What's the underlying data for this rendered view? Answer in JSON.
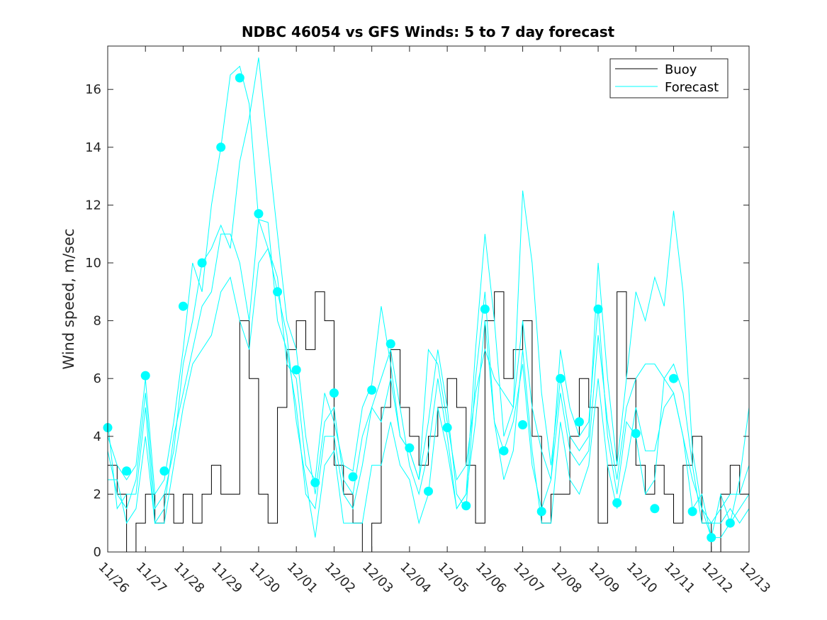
{
  "chart_data": {
    "type": "line",
    "title": "NDBC 46054 vs GFS Winds: 5 to 7 day forecast",
    "xlabel": "",
    "ylabel": "Wind speed, m/sec",
    "x_tick_labels": [
      "11/26",
      "11/27",
      "11/28",
      "11/29",
      "11/30",
      "12/01",
      "12/02",
      "12/03",
      "12/04",
      "12/05",
      "12/06",
      "12/07",
      "12/08",
      "12/09",
      "12/10",
      "12/11",
      "12/12",
      "12/13"
    ],
    "x_range_days": [
      0,
      17
    ],
    "y_ticks": [
      0,
      2,
      4,
      6,
      8,
      10,
      12,
      14,
      16
    ],
    "ylim": [
      0,
      17.5
    ],
    "legend": {
      "location": "top-right",
      "entries": [
        "Buoy",
        "Forecast"
      ]
    },
    "colors": {
      "buoy": "#000000",
      "forecast": "#00ffff",
      "axes": "#262626"
    },
    "series": [
      {
        "name": "Buoy",
        "x": [
          0.0,
          0.25,
          0.5,
          0.75,
          1.0,
          1.25,
          1.5,
          1.75,
          2.0,
          2.25,
          2.5,
          2.75,
          3.0,
          3.25,
          3.5,
          3.75,
          4.0,
          4.25,
          4.5,
          4.75,
          5.0,
          5.25,
          5.5,
          5.75,
          6.0,
          6.25,
          6.5,
          6.75,
          7.0,
          7.25,
          7.5,
          7.75,
          8.0,
          8.25,
          8.5,
          8.75,
          9.0,
          9.25,
          9.5,
          9.75,
          10.0,
          10.25,
          10.5,
          10.75,
          11.0,
          11.25,
          11.5,
          11.75,
          12.0,
          12.25,
          12.5,
          12.75,
          13.0,
          13.25,
          13.5,
          13.75,
          14.0,
          14.25,
          14.5,
          14.75,
          15.0,
          15.25,
          15.5,
          15.75,
          16.0,
          16.25,
          16.5,
          16.75,
          17.0
        ],
        "values": [
          3,
          2,
          0,
          1,
          2,
          1,
          2,
          1,
          2,
          1,
          2,
          3,
          2,
          2,
          8,
          6,
          2,
          1,
          5,
          7,
          8,
          7,
          9,
          8,
          3,
          2,
          1,
          0,
          1,
          5,
          7,
          5,
          4,
          3,
          4,
          5,
          6,
          5,
          3,
          1,
          8,
          9,
          6,
          7,
          8,
          4,
          1,
          2,
          2,
          4,
          6,
          5,
          1,
          3,
          9,
          6,
          3,
          2,
          3,
          2,
          1,
          3,
          4,
          1,
          0,
          2,
          3,
          2,
          3
        ]
      },
      {
        "name": "Forecast",
        "markers": [
          {
            "x": 0.0,
            "y": 4.3
          },
          {
            "x": 0.5,
            "y": 2.8
          },
          {
            "x": 1.0,
            "y": 6.1
          },
          {
            "x": 1.5,
            "y": 2.8
          },
          {
            "x": 2.0,
            "y": 8.5
          },
          {
            "x": 2.5,
            "y": 10.0
          },
          {
            "x": 3.0,
            "y": 14.0
          },
          {
            "x": 3.5,
            "y": 16.4
          },
          {
            "x": 4.0,
            "y": 11.7
          },
          {
            "x": 4.5,
            "y": 9.0
          },
          {
            "x": 5.0,
            "y": 6.3
          },
          {
            "x": 5.5,
            "y": 2.4
          },
          {
            "x": 6.0,
            "y": 5.5
          },
          {
            "x": 6.5,
            "y": 2.6
          },
          {
            "x": 7.0,
            "y": 5.6
          },
          {
            "x": 7.5,
            "y": 7.2
          },
          {
            "x": 8.0,
            "y": 3.6
          },
          {
            "x": 8.5,
            "y": 2.1
          },
          {
            "x": 9.0,
            "y": 4.3
          },
          {
            "x": 9.5,
            "y": 1.6
          },
          {
            "x": 10.0,
            "y": 8.4
          },
          {
            "x": 10.5,
            "y": 3.5
          },
          {
            "x": 11.0,
            "y": 4.4
          },
          {
            "x": 11.5,
            "y": 1.4
          },
          {
            "x": 12.0,
            "y": 6.0
          },
          {
            "x": 12.5,
            "y": 4.5
          },
          {
            "x": 13.0,
            "y": 8.4
          },
          {
            "x": 13.5,
            "y": 1.7
          },
          {
            "x": 14.0,
            "y": 4.1
          },
          {
            "x": 14.5,
            "y": 1.5
          },
          {
            "x": 15.0,
            "y": 6.0
          },
          {
            "x": 15.5,
            "y": 1.4
          },
          {
            "x": 16.0,
            "y": 0.5
          },
          {
            "x": 16.5,
            "y": 1.0
          }
        ],
        "runs": [
          {
            "x": [
              0.0,
              0.25,
              0.5,
              0.75,
              1.0,
              1.25,
              1.5,
              1.75,
              2.0,
              2.25,
              2.5,
              2.75,
              3.0,
              3.25,
              3.5,
              3.75,
              4.0,
              4.25,
              4.5,
              4.75,
              5.0,
              5.25,
              5.5,
              5.75,
              6.0,
              6.25,
              6.5,
              6.75,
              7.0,
              7.25,
              7.5,
              7.75,
              8.0,
              8.25,
              8.5,
              8.75,
              9.0,
              9.25,
              9.5,
              9.75,
              10.0,
              10.25,
              10.5,
              10.75,
              11.0,
              11.25,
              11.5,
              11.75,
              12.0,
              12.25,
              12.5,
              12.75,
              13.0,
              13.25,
              13.5,
              13.75,
              14.0,
              14.25,
              14.5,
              14.75,
              15.0,
              15.25,
              15.5,
              15.75,
              16.0,
              16.25,
              16.5,
              16.75,
              17.0
            ],
            "values": [
              4.0,
              3.0,
              2.5,
              3.0,
              6.0,
              2.0,
              2.5,
              4.5,
              7.0,
              10.0,
              9.0,
              12.0,
              14.0,
              16.5,
              16.8,
              15.5,
              11.5,
              10.5,
              9.5,
              6.5,
              6.0,
              3.0,
              2.5,
              5.5,
              4.5,
              3.0,
              2.8,
              5.0,
              5.8,
              8.5,
              6.5,
              4.0,
              3.5,
              2.5,
              4.5,
              7.0,
              5.0,
              2.0,
              1.5,
              6.0,
              9.0,
              4.5,
              3.5,
              4.5,
              6.5,
              3.0,
              1.5,
              2.5,
              7.0,
              5.0,
              4.0,
              4.5,
              8.5,
              4.0,
              2.0,
              4.5,
              4.0,
              2.0,
              2.5,
              6.0,
              5.5,
              4.0,
              1.5,
              2.0,
              0.5,
              2.0,
              1.0,
              2.5,
              5.0
            ]
          },
          {
            "x": [
              0.0,
              0.25,
              0.5,
              0.75,
              1.0,
              1.25,
              1.5,
              1.75,
              2.0,
              2.25,
              2.5,
              2.75,
              3.0,
              3.25,
              3.5,
              3.75,
              4.0,
              4.25,
              4.5,
              4.75,
              5.0,
              5.25,
              5.5,
              5.75,
              6.0,
              6.25,
              6.5,
              6.75,
              7.0,
              7.25,
              7.5,
              7.75,
              8.0,
              8.25,
              8.5,
              8.75,
              9.0,
              9.25,
              9.5,
              9.75,
              10.0,
              10.25,
              10.5,
              10.75,
              11.0,
              11.25,
              11.5,
              11.75,
              12.0,
              12.25,
              12.5,
              12.75,
              13.0,
              13.25,
              13.5,
              13.75,
              14.0,
              14.25,
              14.5,
              14.75,
              15.0,
              15.25,
              15.5,
              15.75,
              16.0,
              16.25,
              16.5,
              16.75,
              17.0
            ],
            "values": [
              3.5,
              2.0,
              1.5,
              2.5,
              5.5,
              1.5,
              2.0,
              3.5,
              6.5,
              8.0,
              10.0,
              10.5,
              11.3,
              10.5,
              13.5,
              15.0,
              17.1,
              14.0,
              11.0,
              8.0,
              7.0,
              4.0,
              2.0,
              4.5,
              5.0,
              2.5,
              2.0,
              4.0,
              5.0,
              6.0,
              7.0,
              5.0,
              3.0,
              2.0,
              3.5,
              6.0,
              4.0,
              1.5,
              2.0,
              7.0,
              11.0,
              8.0,
              4.0,
              5.0,
              12.5,
              10.0,
              5.5,
              3.0,
              6.0,
              4.0,
              3.5,
              4.0,
              10.0,
              6.0,
              3.0,
              6.0,
              9.0,
              8.0,
              9.5,
              8.5,
              11.8,
              9.0,
              3.5,
              1.5,
              1.0,
              1.5,
              2.0,
              2.0,
              3.0
            ]
          },
          {
            "x": [
              0.0,
              0.25,
              0.5,
              0.75,
              1.0,
              1.25,
              1.5,
              1.75,
              2.0,
              2.25,
              2.5,
              2.75,
              3.0,
              3.25,
              3.5,
              3.75,
              4.0,
              4.25,
              4.5,
              4.75,
              5.0,
              5.25,
              5.5,
              5.75,
              6.0,
              6.25,
              6.5,
              6.75,
              7.0,
              7.25,
              7.5,
              7.75,
              8.0,
              8.25,
              8.5,
              8.75,
              9.0,
              9.25,
              9.5,
              9.75,
              10.0,
              10.25,
              10.5,
              10.75,
              11.0,
              11.25,
              11.5,
              11.75,
              12.0,
              12.25,
              12.5,
              12.75,
              13.0,
              13.25,
              13.5,
              13.75,
              14.0,
              14.25,
              14.5,
              14.75,
              15.0,
              15.25,
              15.5,
              15.75,
              16.0,
              16.25,
              16.5,
              16.75,
              17.0
            ],
            "values": [
              4.5,
              1.5,
              2.0,
              2.0,
              5.0,
              1.0,
              1.5,
              4.0,
              5.5,
              7.0,
              8.5,
              9.0,
              11.0,
              11.0,
              10.0,
              8.0,
              11.5,
              11.4,
              8.0,
              7.0,
              5.0,
              2.0,
              1.5,
              4.0,
              4.0,
              2.0,
              1.5,
              3.0,
              5.0,
              4.5,
              6.0,
              4.0,
              3.5,
              2.5,
              7.0,
              6.5,
              4.5,
              2.5,
              3.0,
              5.5,
              7.0,
              6.0,
              5.5,
              5.0,
              8.0,
              5.0,
              3.5,
              2.5,
              5.5,
              3.5,
              3.0,
              3.5,
              7.5,
              4.5,
              2.5,
              5.0,
              6.0,
              6.5,
              6.5,
              6.0,
              6.5,
              5.5,
              3.0,
              1.0,
              1.0,
              1.0,
              1.5,
              1.0,
              1.5
            ]
          },
          {
            "x": [
              0.0,
              0.25,
              0.5,
              0.75,
              1.0,
              1.25,
              1.5,
              1.75,
              2.0,
              2.25,
              2.5,
              2.75,
              3.0,
              3.25,
              3.5,
              3.75,
              4.0,
              4.25,
              4.5,
              4.75,
              5.0,
              5.25,
              5.5,
              5.75,
              6.0,
              6.25,
              6.5,
              6.75,
              7.0,
              7.25,
              7.5,
              7.75,
              8.0,
              8.25,
              8.5,
              8.75,
              9.0,
              9.25,
              9.5,
              9.75,
              10.0,
              10.25,
              10.5,
              10.75,
              11.0,
              11.25,
              11.5,
              11.75,
              12.0,
              12.25,
              12.5,
              12.75,
              13.0,
              13.25,
              13.5,
              13.75,
              14.0,
              14.25,
              14.5,
              14.75,
              15.0,
              15.25,
              15.5,
              15.75,
              16.0,
              16.25,
              16.5,
              16.75,
              17.0
            ],
            "values": [
              2.5,
              2.5,
              1.0,
              1.5,
              4.0,
              1.0,
              1.0,
              3.0,
              5.0,
              6.5,
              7.0,
              7.5,
              9.0,
              9.5,
              8.0,
              7.0,
              10.0,
              10.5,
              9.0,
              7.5,
              4.5,
              2.5,
              0.5,
              3.0,
              3.5,
              1.0,
              1.0,
              1.0,
              3.0,
              3.0,
              4.5,
              3.0,
              2.5,
              1.0,
              2.0,
              5.0,
              3.5,
              1.5,
              2.0,
              4.5,
              8.0,
              4.5,
              2.5,
              3.5,
              7.0,
              3.5,
              1.0,
              1.0,
              4.5,
              2.5,
              2.0,
              3.0,
              6.0,
              3.0,
              1.5,
              3.0,
              5.0,
              3.5,
              3.5,
              5.0,
              5.5,
              4.0,
              2.5,
              1.5,
              0.5,
              0.5,
              1.0,
              1.5,
              2.0
            ]
          }
        ]
      }
    ]
  }
}
